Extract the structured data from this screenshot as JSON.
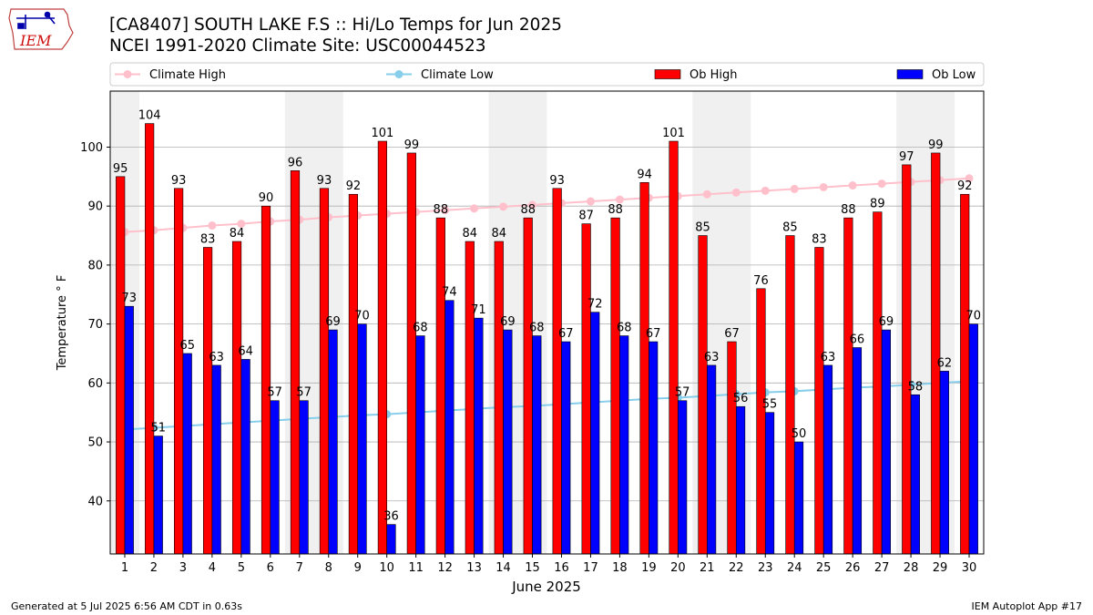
{
  "header": {
    "title_line1": "[CA8407] SOUTH LAKE F.S :: Hi/Lo Temps for Jun 2025",
    "title_line2": "NCEI 1991-2020 Climate Site: USC00044523"
  },
  "logo": {
    "text": "IEM",
    "icon": "iem-iowa-logo-icon"
  },
  "footer": {
    "left": "Generated at 5 Jul 2025 6:56 AM CDT in 0.63s",
    "right": "IEM Autoplot App #17"
  },
  "chart_data": {
    "type": "bar",
    "xlabel": "June 2025",
    "ylabel": "Temperature ° F",
    "ylim": [
      31,
      109.5
    ],
    "yticks": [
      40,
      50,
      60,
      70,
      80,
      90,
      100
    ],
    "grid": "horizontal",
    "legend_placement": "top",
    "categories": [
      "1",
      "2",
      "3",
      "4",
      "5",
      "6",
      "7",
      "8",
      "9",
      "10",
      "11",
      "12",
      "13",
      "14",
      "15",
      "16",
      "17",
      "18",
      "19",
      "20",
      "21",
      "22",
      "23",
      "24",
      "25",
      "26",
      "27",
      "28",
      "29",
      "30"
    ],
    "weekend_shading": [
      [
        1,
        1
      ],
      [
        7,
        8
      ],
      [
        14,
        15
      ],
      [
        21,
        22
      ],
      [
        28,
        29
      ]
    ],
    "series": [
      {
        "name": "Climate High",
        "kind": "line",
        "color": "#ffc0cb",
        "values": [
          85.6,
          85.9,
          86.3,
          86.7,
          87.0,
          87.4,
          87.7,
          88.1,
          88.4,
          88.7,
          89.0,
          89.3,
          89.6,
          89.9,
          90.2,
          90.5,
          90.8,
          91.1,
          91.4,
          91.7,
          92.0,
          92.3,
          92.6,
          92.9,
          93.2,
          93.5,
          93.8,
          94.1,
          94.4,
          94.7
        ]
      },
      {
        "name": "Climate Low",
        "kind": "line",
        "color": "#87ceeb",
        "values": [
          52.1,
          52.4,
          52.7,
          53.0,
          53.3,
          53.6,
          53.9,
          54.2,
          54.5,
          54.7,
          55.0,
          55.3,
          55.6,
          55.9,
          56.1,
          56.4,
          56.7,
          57.0,
          57.3,
          57.5,
          57.8,
          58.1,
          58.4,
          58.6,
          58.9,
          59.2,
          59.4,
          59.7,
          60.0,
          60.3
        ]
      },
      {
        "name": "Ob High",
        "kind": "bar",
        "color": "#ff0000",
        "values": [
          95,
          104,
          93,
          83,
          84,
          90,
          96,
          93,
          92,
          101,
          99,
          88,
          84,
          84,
          88,
          93,
          87,
          88,
          94,
          101,
          85,
          67,
          76,
          85,
          83,
          88,
          89,
          97,
          99,
          92
        ]
      },
      {
        "name": "Ob Low",
        "kind": "bar",
        "color": "#0000ff",
        "values": [
          73,
          51,
          65,
          63,
          64,
          57,
          57,
          69,
          70,
          36,
          68,
          74,
          71,
          69,
          68,
          67,
          72,
          68,
          67,
          57,
          63,
          56,
          55,
          50,
          63,
          66,
          69,
          58,
          62,
          70
        ]
      }
    ]
  }
}
